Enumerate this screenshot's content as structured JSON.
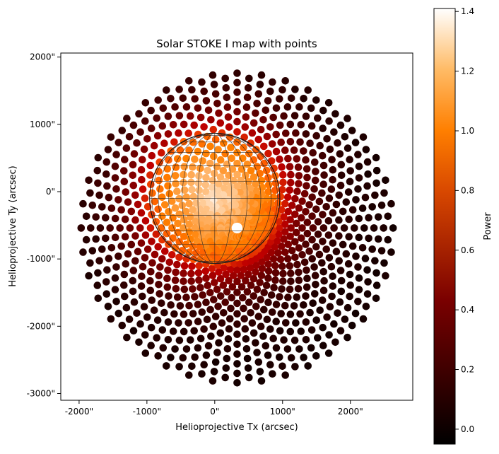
{
  "chart_data": {
    "type": "scatter",
    "title": "Solar STOKE I map with points",
    "xlabel": "Helioprojective Tx (arcsec)",
    "ylabel": "Helioprojective Ty (arcsec)",
    "xlim": [
      -2270,
      2920
    ],
    "ylim": [
      -3100,
      2060
    ],
    "x_ticks": [
      -2000,
      -1000,
      0,
      1000,
      2000
    ],
    "x_tick_labels": [
      "-2000\"",
      "-1000\"",
      "0\"",
      "1000\"",
      "2000\""
    ],
    "y_ticks": [
      2000,
      1000,
      0,
      -1000,
      -2000,
      -3000
    ],
    "y_tick_labels": [
      "2000\"",
      "1000\"",
      "0\"",
      "-1000\"",
      "-2000\"",
      "-3000\""
    ],
    "colormap": "gist_heat",
    "colorbar": {
      "label": "Power",
      "range": [
        -0.05,
        1.41
      ],
      "ticks": [
        0.0,
        0.2,
        0.4,
        0.6,
        0.8,
        1.0,
        1.2,
        1.4
      ],
      "tick_labels": [
        "0.0",
        "0.2",
        "0.4",
        "0.6",
        "0.8",
        "1.0",
        "1.2",
        "1.4"
      ]
    },
    "solar_disk": {
      "center_arcsec": [
        0,
        -100
      ],
      "radius_arcsec": 960,
      "grid_spacing_deg": 15
    },
    "point_cloud": {
      "center_arcsec": [
        330,
        -540
      ],
      "max_radius_arcsec": 2300,
      "rings": 28,
      "points_per_ring": 40,
      "power_range": [
        0.0,
        1.4
      ]
    },
    "grid": false
  }
}
